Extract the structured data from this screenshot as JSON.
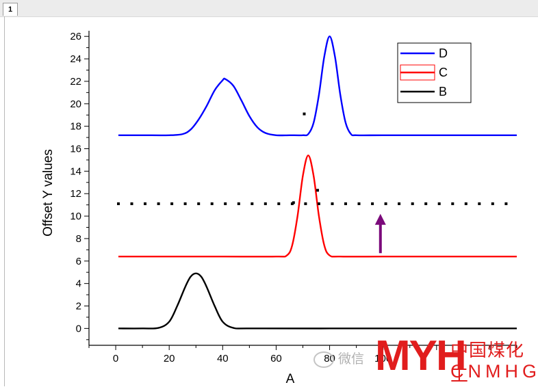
{
  "window": {
    "tab_label": "1"
  },
  "chart_data": {
    "type": "line",
    "xlabel": "A",
    "ylabel": "Offset Y values",
    "xlim": [
      -10,
      150
    ],
    "ylim": [
      -1.5,
      26.5
    ],
    "x_ticks": [
      0,
      20,
      40,
      60,
      80,
      100,
      120,
      140
    ],
    "x_tick_labels": [
      "0",
      "20",
      "40",
      "60",
      "80",
      "100",
      "",
      ""
    ],
    "y_ticks": [
      0,
      2,
      4,
      6,
      8,
      10,
      12,
      14,
      16,
      18,
      20,
      22,
      24,
      26
    ],
    "y_tick_labels": [
      "0",
      "2",
      "4",
      "6",
      "8",
      "10",
      "12",
      "14",
      "16",
      "18",
      "20",
      "22",
      "24",
      "26"
    ],
    "legend_position": "top-right",
    "series": [
      {
        "name": "D",
        "color": "#0000ff",
        "x": [
          1,
          10,
          20,
          25,
          28,
          31,
          34,
          37,
          40,
          41,
          44,
          47,
          50,
          53,
          56,
          60,
          65,
          70,
          72,
          74,
          76,
          78,
          80,
          82,
          84,
          86,
          88,
          90,
          100,
          120,
          150
        ],
        "y": [
          17.2,
          17.2,
          17.2,
          17.3,
          17.7,
          18.6,
          19.8,
          21.2,
          22.1,
          22.2,
          21.6,
          20.3,
          18.9,
          17.9,
          17.4,
          17.2,
          17.2,
          17.2,
          17.3,
          18.3,
          20.8,
          24.2,
          26.0,
          24.2,
          20.8,
          18.3,
          17.3,
          17.2,
          17.2,
          17.2,
          17.2
        ]
      },
      {
        "name": "C",
        "color": "#ff0000",
        "legend_style": "box",
        "x": [
          1,
          20,
          40,
          60,
          64,
          66,
          68,
          70,
          72,
          74,
          76,
          78,
          80,
          84,
          100,
          120,
          150
        ],
        "y": [
          6.4,
          6.4,
          6.4,
          6.4,
          6.5,
          7.4,
          10.0,
          13.6,
          15.4,
          13.6,
          10.0,
          7.4,
          6.5,
          6.4,
          6.4,
          6.4,
          6.4
        ]
      },
      {
        "name": "B",
        "color": "#000000",
        "x": [
          1,
          10,
          16,
          20,
          23,
          26,
          28,
          30,
          32,
          34,
          37,
          40,
          44,
          50,
          80,
          120,
          150
        ],
        "y": [
          0,
          0,
          0.05,
          0.6,
          2.0,
          3.7,
          4.6,
          4.9,
          4.6,
          3.7,
          2.0,
          0.6,
          0.05,
          0,
          0,
          0,
          0
        ]
      }
    ],
    "dotted_line": {
      "color": "#000000",
      "x": [
        1,
        6,
        11,
        16,
        21,
        26,
        31,
        36,
        41,
        46,
        51,
        56,
        61,
        66,
        71,
        76,
        81,
        86,
        91,
        96,
        101,
        106,
        111,
        116,
        121,
        126,
        131,
        136,
        141,
        146
      ],
      "y": [
        11.1,
        11.1,
        11.1,
        11.1,
        11.1,
        11.1,
        11.1,
        11.1,
        11.1,
        11.1,
        11.1,
        11.1,
        11.1,
        11.1,
        11.1,
        11.1,
        11.1,
        11.1,
        11.1,
        11.1,
        11.1,
        11.1,
        11.1,
        11.1,
        11.1,
        11.1,
        11.1,
        11.1,
        11.1,
        11.1
      ]
    },
    "stray_points": [
      {
        "x": 70.5,
        "y": 19.1
      },
      {
        "x": 66.5,
        "y": 11.2
      },
      {
        "x": 75.5,
        "y": 12.3
      }
    ],
    "arrow": {
      "x": 99,
      "y_from": 6.7,
      "y_to": 10.2,
      "color": "#7b0a7b"
    }
  },
  "watermark": {
    "logo_text": "MYH",
    "chinese_name": "中国煤化工",
    "english_name": "CNMHG",
    "wechat_label": "微信"
  }
}
